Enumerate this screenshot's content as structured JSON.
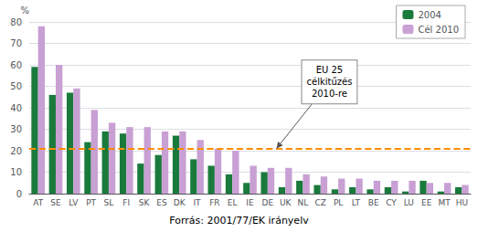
{
  "chart_data": {
    "type": "bar",
    "categories": [
      "AT",
      "SE",
      "LV",
      "PT",
      "SL",
      "FI",
      "SK",
      "ES",
      "DK",
      "IT",
      "FR",
      "EL",
      "IE",
      "DE",
      "UK",
      "NL",
      "CZ",
      "PL",
      "LT",
      "BE",
      "CY",
      "LU",
      "EE",
      "MT",
      "HU"
    ],
    "series": [
      {
        "name": "2004",
        "color": "#1a7a3c",
        "values": [
          59,
          46,
          47,
          24,
          29,
          28,
          14,
          18,
          27,
          16,
          13,
          9,
          5,
          10,
          3,
          6,
          4,
          2,
          3,
          2,
          3,
          1,
          6,
          1,
          3
        ]
      },
      {
        "name": "Cél 2010",
        "color": "#c8a0d4",
        "values": [
          78,
          60,
          49,
          39,
          33,
          31,
          31,
          29,
          29,
          25,
          21,
          20,
          13,
          12,
          12,
          9,
          8,
          7,
          7,
          6,
          6,
          6,
          5,
          5,
          4
        ]
      }
    ],
    "ylabel": "%",
    "ylim": [
      0,
      80
    ],
    "yticks": [
      0,
      10,
      20,
      30,
      40,
      50,
      60,
      70,
      80
    ],
    "grid": true,
    "legend": "upper right",
    "reference_line": {
      "value": 21,
      "color": "#ff8c00",
      "line_style": "dashed"
    },
    "annotation": "EU 25\ncélkitűzés\n2010-re",
    "source": "Forrás: 2001/77/EK irányelv"
  }
}
